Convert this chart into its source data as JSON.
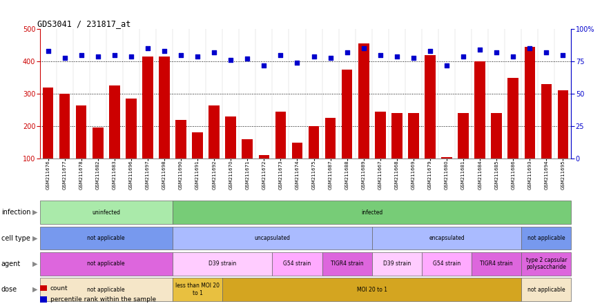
{
  "title": "GDS3041 / 231817_at",
  "samples": [
    "GSM211676",
    "GSM211677",
    "GSM211678",
    "GSM211682",
    "GSM211683",
    "GSM211696",
    "GSM211697",
    "GSM211698",
    "GSM211690",
    "GSM211691",
    "GSM211692",
    "GSM211670",
    "GSM211671",
    "GSM211672",
    "GSM211673",
    "GSM211674",
    "GSM211675",
    "GSM211687",
    "GSM211688",
    "GSM211689",
    "GSM211667",
    "GSM211668",
    "GSM211669",
    "GSM211679",
    "GSM211680",
    "GSM211681",
    "GSM211684",
    "GSM211685",
    "GSM211686",
    "GSM211693",
    "GSM211694",
    "GSM211695"
  ],
  "counts": [
    320,
    300,
    265,
    195,
    325,
    285,
    415,
    415,
    220,
    180,
    265,
    230,
    160,
    110,
    245,
    150,
    200,
    225,
    375,
    455,
    245,
    240,
    240,
    420,
    105,
    240,
    400,
    240,
    350,
    445,
    330,
    310
  ],
  "percentiles": [
    83,
    78,
    80,
    79,
    80,
    79,
    85,
    83,
    80,
    79,
    82,
    76,
    77,
    72,
    80,
    74,
    79,
    78,
    82,
    85,
    80,
    79,
    78,
    83,
    72,
    79,
    84,
    82,
    79,
    85,
    82,
    80
  ],
  "bar_color": "#cc0000",
  "dot_color": "#0000cc",
  "ylim_left": [
    100,
    500
  ],
  "ylim_right": [
    0,
    100
  ],
  "yticks_left": [
    100,
    200,
    300,
    400,
    500
  ],
  "yticks_right": [
    0,
    25,
    50,
    75,
    100
  ],
  "yticklabels_right": [
    "0",
    "25",
    "50",
    "75",
    "100%"
  ],
  "grid_lines": [
    200,
    300,
    400
  ],
  "annotation_rows": [
    {
      "label": "infection",
      "segments": [
        {
          "text": "uninfected",
          "start": 0,
          "end": 8,
          "color": "#aaeaaa"
        },
        {
          "text": "infected",
          "start": 8,
          "end": 32,
          "color": "#77cc77"
        }
      ]
    },
    {
      "label": "cell type",
      "segments": [
        {
          "text": "not applicable",
          "start": 0,
          "end": 8,
          "color": "#7799ee"
        },
        {
          "text": "uncapsulated",
          "start": 8,
          "end": 20,
          "color": "#aabbff"
        },
        {
          "text": "encapsulated",
          "start": 20,
          "end": 29,
          "color": "#aabbff"
        },
        {
          "text": "not applicable",
          "start": 29,
          "end": 32,
          "color": "#7799ee"
        }
      ]
    },
    {
      "label": "agent",
      "segments": [
        {
          "text": "not applicable",
          "start": 0,
          "end": 8,
          "color": "#dd66dd"
        },
        {
          "text": "D39 strain",
          "start": 8,
          "end": 14,
          "color": "#ffccff"
        },
        {
          "text": "G54 strain",
          "start": 14,
          "end": 17,
          "color": "#ffaaff"
        },
        {
          "text": "TIGR4 strain",
          "start": 17,
          "end": 20,
          "color": "#dd66dd"
        },
        {
          "text": "D39 strain",
          "start": 20,
          "end": 23,
          "color": "#ffccff"
        },
        {
          "text": "G54 strain",
          "start": 23,
          "end": 26,
          "color": "#ffaaff"
        },
        {
          "text": "TIGR4 strain",
          "start": 26,
          "end": 29,
          "color": "#dd66dd"
        },
        {
          "text": "type 2 capsular\npolysaccharide",
          "start": 29,
          "end": 32,
          "color": "#dd66dd"
        }
      ]
    },
    {
      "label": "dose",
      "segments": [
        {
          "text": "not applicable",
          "start": 0,
          "end": 8,
          "color": "#f5e6c8"
        },
        {
          "text": "less than MOI 20\nto 1",
          "start": 8,
          "end": 11,
          "color": "#e8c040"
        },
        {
          "text": "MOI 20 to 1",
          "start": 11,
          "end": 29,
          "color": "#d4a520"
        },
        {
          "text": "not applicable",
          "start": 29,
          "end": 32,
          "color": "#f5e6c8"
        }
      ]
    }
  ],
  "legend_items": [
    {
      "color": "#cc0000",
      "label": "count"
    },
    {
      "color": "#0000cc",
      "label": "percentile rank within the sample"
    }
  ]
}
